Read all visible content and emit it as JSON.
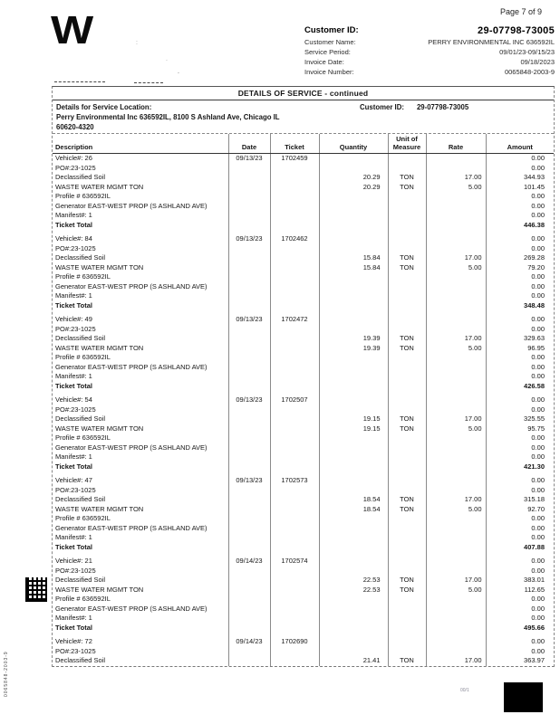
{
  "header": {
    "page_indicator": "Page 7 of 9",
    "logo_text": "W",
    "fields": [
      {
        "label": "Customer ID:",
        "value": "29-07798-73005"
      },
      {
        "label": "Customer Name:",
        "value": "PERRY ENVIRONMENTAL INC 636592IL"
      },
      {
        "label": "Service Period:",
        "value": "09/01/23-09/15/23"
      },
      {
        "label": "Invoice Date:",
        "value": "09/18/2023"
      },
      {
        "label": "Invoice Number:",
        "value": "0065848-2003-9"
      }
    ]
  },
  "section": {
    "title": "DETAILS OF SERVICE - continued",
    "location_label": "Details for Service Location:",
    "location_line1": "Perry Environmental Inc 636592IL, 8100 S Ashland Ave, Chicago IL",
    "location_line2": "60620-4320",
    "customer_id_label": "Customer ID:",
    "customer_id_value": "29-07798-73005"
  },
  "table": {
    "columns": [
      "Description",
      "Date",
      "Ticket",
      "Quantity",
      "Unit of Measure",
      "Rate",
      "Amount"
    ],
    "tickets": [
      {
        "rows": [
          {
            "desc": "Vehicle#: 26",
            "date": "09/13/23",
            "ticket": "1702459",
            "amount": "0.00"
          },
          {
            "desc": "PO#:23-1025",
            "amount": "0.00"
          },
          {
            "desc": "Declassified Soil",
            "qty": "20.29",
            "unit": "TON",
            "rate": "17.00",
            "amount": "344.93"
          },
          {
            "desc": "WASTE WATER MGMT TON",
            "qty": "20.29",
            "unit": "TON",
            "rate": "5.00",
            "amount": "101.45"
          },
          {
            "desc": "Profile # 636592IL",
            "amount": "0.00"
          },
          {
            "desc": "Generator EAST-WEST PROP (S ASHLAND AVE)",
            "amount": "0.00"
          },
          {
            "desc": "Manifest#: 1",
            "amount": "0.00"
          },
          {
            "desc": "Ticket Total",
            "amount": "446.38",
            "total": true
          }
        ]
      },
      {
        "rows": [
          {
            "desc": "Vehicle#: 84",
            "date": "09/13/23",
            "ticket": "1702462",
            "amount": "0.00"
          },
          {
            "desc": "PO#:23-1025",
            "amount": "0.00"
          },
          {
            "desc": "Declassified Soil",
            "qty": "15.84",
            "unit": "TON",
            "rate": "17.00",
            "amount": "269.28"
          },
          {
            "desc": "WASTE WATER MGMT TON",
            "qty": "15.84",
            "unit": "TON",
            "rate": "5.00",
            "amount": "79.20"
          },
          {
            "desc": "Profile # 636592IL",
            "amount": "0.00"
          },
          {
            "desc": "Generator EAST-WEST PROP (S ASHLAND AVE)",
            "amount": "0.00"
          },
          {
            "desc": "Manifest#: 1",
            "amount": "0.00"
          },
          {
            "desc": "Ticket Total",
            "amount": "348.48",
            "total": true
          }
        ]
      },
      {
        "rows": [
          {
            "desc": "Vehicle#: 49",
            "date": "09/13/23",
            "ticket": "1702472",
            "amount": "0.00"
          },
          {
            "desc": "PO#:23-1025",
            "amount": "0.00"
          },
          {
            "desc": "Declassified Soil",
            "qty": "19.39",
            "unit": "TON",
            "rate": "17.00",
            "amount": "329.63"
          },
          {
            "desc": "WASTE WATER MGMT TON",
            "qty": "19.39",
            "unit": "TON",
            "rate": "5.00",
            "amount": "96.95"
          },
          {
            "desc": "Profile # 636592IL",
            "amount": "0.00"
          },
          {
            "desc": "Generator EAST-WEST PROP (S ASHLAND AVE)",
            "amount": "0.00"
          },
          {
            "desc": "Manifest#: 1",
            "amount": "0.00"
          },
          {
            "desc": "Ticket Total",
            "amount": "426.58",
            "total": true
          }
        ]
      },
      {
        "rows": [
          {
            "desc": "Vehicle#: 54",
            "date": "09/13/23",
            "ticket": "1702507",
            "amount": "0.00"
          },
          {
            "desc": "PO#:23-1025",
            "amount": "0.00"
          },
          {
            "desc": "Declassified Soil",
            "qty": "19.15",
            "unit": "TON",
            "rate": "17.00",
            "amount": "325.55"
          },
          {
            "desc": "WASTE WATER MGMT TON",
            "qty": "19.15",
            "unit": "TON",
            "rate": "5.00",
            "amount": "95.75"
          },
          {
            "desc": "Profile # 636592IL",
            "amount": "0.00"
          },
          {
            "desc": "Generator EAST-WEST PROP (S ASHLAND AVE)",
            "amount": "0.00"
          },
          {
            "desc": "Manifest#: 1",
            "amount": "0.00"
          },
          {
            "desc": "Ticket Total",
            "amount": "421.30",
            "total": true
          }
        ]
      },
      {
        "rows": [
          {
            "desc": "Vehicle#: 47",
            "date": "09/13/23",
            "ticket": "1702573",
            "amount": "0.00"
          },
          {
            "desc": "PO#:23-1025",
            "amount": "0.00"
          },
          {
            "desc": "Declassified Soil",
            "qty": "18.54",
            "unit": "TON",
            "rate": "17.00",
            "amount": "315.18"
          },
          {
            "desc": "WASTE WATER MGMT TON",
            "qty": "18.54",
            "unit": "TON",
            "rate": "5.00",
            "amount": "92.70"
          },
          {
            "desc": "Profile # 636592IL",
            "amount": "0.00"
          },
          {
            "desc": "Generator EAST-WEST PROP (S ASHLAND AVE)",
            "amount": "0.00"
          },
          {
            "desc": "Manifest#: 1",
            "amount": "0.00"
          },
          {
            "desc": "Ticket Total",
            "amount": "407.88",
            "total": true
          }
        ]
      },
      {
        "rows": [
          {
            "desc": "Vehicle#: 21",
            "date": "09/14/23",
            "ticket": "1702574",
            "amount": "0.00"
          },
          {
            "desc": "PO#:23-1025",
            "amount": "0.00"
          },
          {
            "desc": "Declassified Soil",
            "qty": "22.53",
            "unit": "TON",
            "rate": "17.00",
            "amount": "383.01"
          },
          {
            "desc": "WASTE WATER MGMT TON",
            "qty": "22.53",
            "unit": "TON",
            "rate": "5.00",
            "amount": "112.65"
          },
          {
            "desc": "Profile # 636592IL",
            "amount": "0.00"
          },
          {
            "desc": "Generator EAST-WEST PROP (S ASHLAND AVE)",
            "amount": "0.00"
          },
          {
            "desc": "Manifest#: 1",
            "amount": "0.00"
          },
          {
            "desc": "Ticket Total",
            "amount": "495.66",
            "total": true
          }
        ]
      },
      {
        "rows": [
          {
            "desc": "Vehicle#: 72",
            "date": "09/14/23",
            "ticket": "1702690",
            "amount": "0.00"
          },
          {
            "desc": "PO#:23-1025",
            "amount": "0.00"
          },
          {
            "desc": "Declassified Soil",
            "qty": "21.41",
            "unit": "TON",
            "rate": "17.00",
            "amount": "363.97"
          }
        ]
      }
    ]
  },
  "artifacts": {
    "left_margin_code": "0065848-2003-9",
    "footer_mark": "00/1"
  }
}
